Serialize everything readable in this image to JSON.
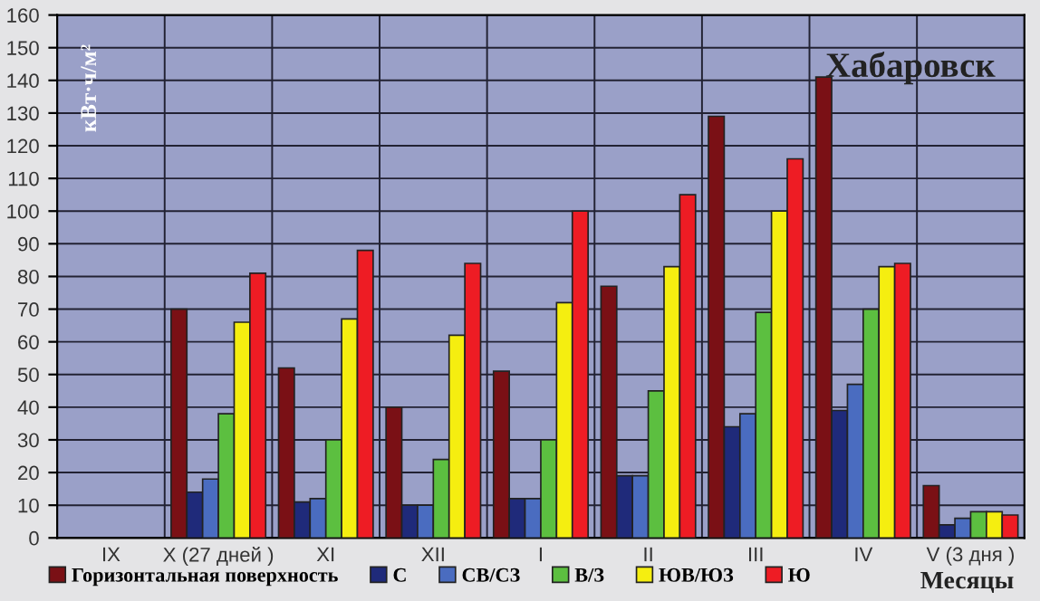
{
  "chart_data": {
    "type": "bar",
    "title": "Хабаровск",
    "xlabel": "Месяцы",
    "ylabel": "кВт·ч/м²",
    "categories": [
      "IX",
      "X (27 дней )",
      "XI",
      "XII",
      "I",
      "II",
      "III",
      "IV",
      "V (3 дня )"
    ],
    "series": [
      {
        "name": "Горизонтальная поверхность",
        "color": "#7a1015",
        "values": [
          null,
          70,
          52,
          40,
          51,
          77,
          129,
          141,
          16
        ]
      },
      {
        "name": "С",
        "color": "#1f2a7a",
        "values": [
          null,
          14,
          11,
          10,
          12,
          19,
          34,
          39,
          4
        ]
      },
      {
        "name": "СВ/СЗ",
        "color": "#4a6cc0",
        "values": [
          null,
          18,
          12,
          10,
          12,
          19,
          38,
          47,
          6
        ]
      },
      {
        "name": "В/З",
        "color": "#5cbf40",
        "values": [
          null,
          38,
          30,
          24,
          30,
          45,
          69,
          70,
          8
        ]
      },
      {
        "name": "ЮВ/ЮЗ",
        "color": "#f5ee10",
        "values": [
          null,
          66,
          67,
          62,
          72,
          83,
          100,
          83,
          8
        ]
      },
      {
        "name": "Ю",
        "color": "#ee1c24",
        "values": [
          null,
          81,
          88,
          84,
          100,
          105,
          116,
          84,
          7
        ]
      }
    ],
    "ylim": [
      0,
      160
    ],
    "yticks": [
      0,
      10,
      20,
      30,
      40,
      50,
      60,
      70,
      80,
      90,
      100,
      110,
      120,
      130,
      140,
      150,
      160
    ],
    "grid": true,
    "legend": "bottom"
  }
}
